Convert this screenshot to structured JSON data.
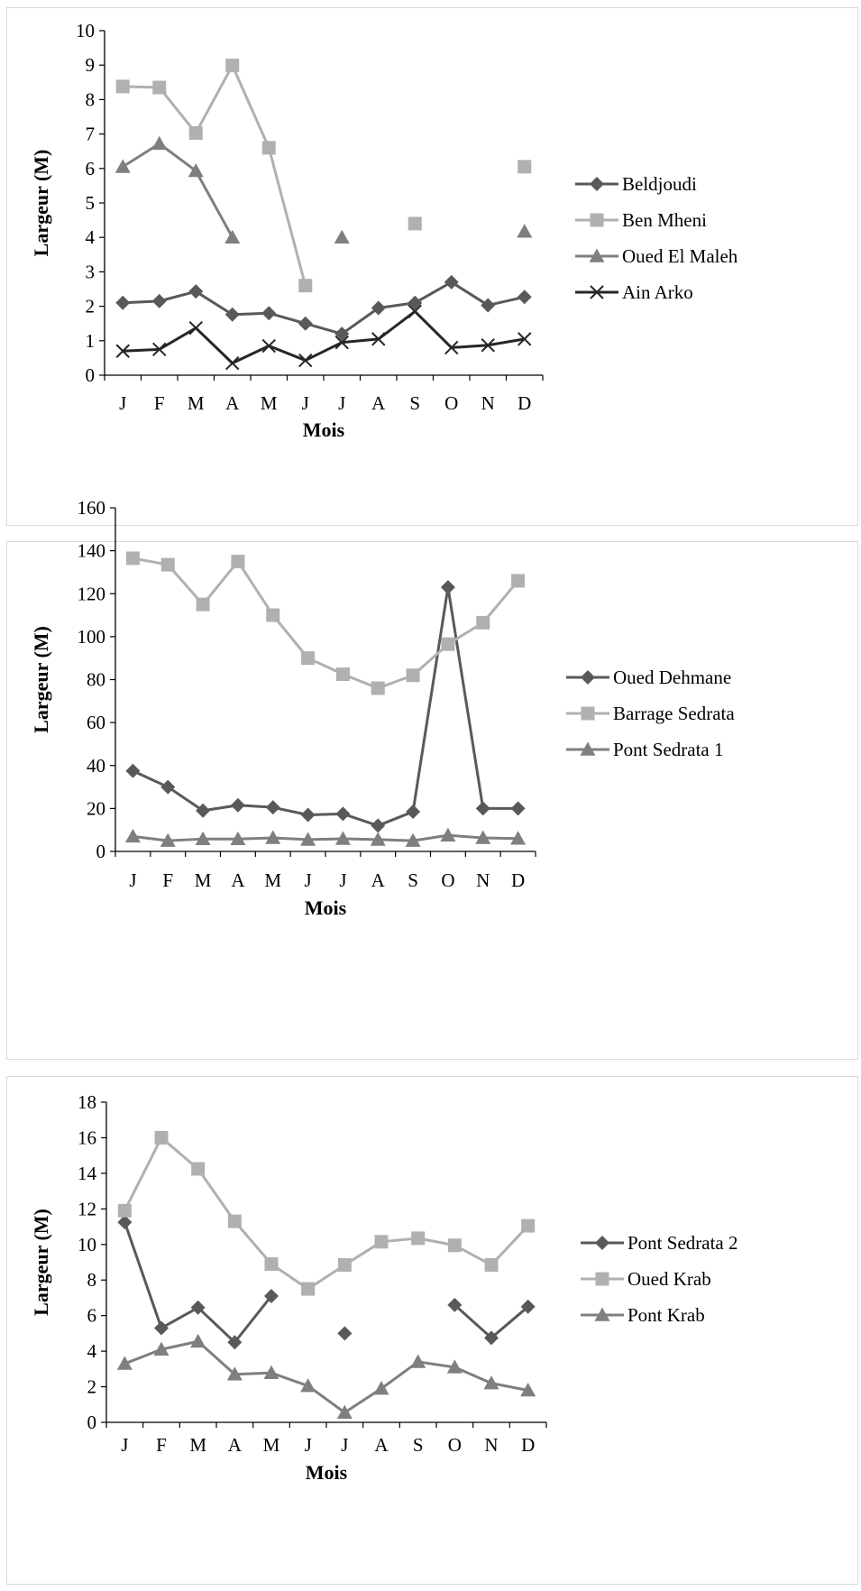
{
  "chart_data": [
    {
      "type": "line",
      "title": "",
      "xlabel": "Mois",
      "ylabel": "Largeur (M)",
      "categories": [
        "J",
        "F",
        "M",
        "A",
        "M",
        "J",
        "J",
        "A",
        "S",
        "O",
        "N",
        "D"
      ],
      "ylim": [
        0,
        10
      ],
      "yticks": [
        0,
        1,
        2,
        3,
        4,
        5,
        6,
        7,
        8,
        9,
        10
      ],
      "legend_position": "right",
      "grid": false,
      "series": [
        {
          "name": "Beldjoudi",
          "marker": "diamond",
          "color": "#595959",
          "values": [
            2.1,
            2.15,
            2.43,
            1.76,
            1.8,
            1.5,
            1.2,
            1.95,
            2.1,
            2.7,
            2.03,
            2.27
          ]
        },
        {
          "name": "Ben Mheni",
          "marker": "square",
          "color": "#b0b0b0",
          "values": [
            8.38,
            8.35,
            7.03,
            8.99,
            6.6,
            2.6,
            null,
            null,
            4.4,
            null,
            null,
            6.05
          ]
        },
        {
          "name": "Oued El Maleh",
          "marker": "triangle",
          "color": "#7f7f7f",
          "values": [
            6.05,
            6.72,
            5.93,
            4.0,
            null,
            null,
            4.0,
            null,
            null,
            null,
            null,
            4.17
          ]
        },
        {
          "name": "Ain Arko",
          "marker": "x",
          "color": "#262626",
          "values": [
            0.7,
            0.75,
            1.37,
            0.35,
            0.85,
            0.43,
            0.95,
            1.05,
            1.85,
            0.8,
            0.87,
            1.05
          ]
        }
      ]
    },
    {
      "type": "line",
      "title": "",
      "xlabel": "Mois",
      "ylabel": "Largeur (M)",
      "categories": [
        "J",
        "F",
        "M",
        "A",
        "M",
        "J",
        "J",
        "A",
        "S",
        "O",
        "N",
        "D"
      ],
      "ylim": [
        0,
        160
      ],
      "yticks": [
        0,
        20,
        40,
        60,
        80,
        100,
        120,
        140,
        160
      ],
      "legend_position": "right",
      "grid": false,
      "series": [
        {
          "name": "Oued Dehmane",
          "marker": "diamond",
          "color": "#595959",
          "values": [
            37.5,
            30.0,
            19.0,
            21.5,
            20.5,
            17.0,
            17.5,
            12.0,
            18.5,
            123.0,
            20.0,
            20.0
          ]
        },
        {
          "name": "Barrage Sedrata",
          "marker": "square",
          "color": "#b0b0b0",
          "values": [
            136.5,
            133.5,
            115.0,
            135.0,
            110.0,
            90.0,
            82.5,
            76.0,
            82.0,
            96.5,
            106.5,
            126.0
          ]
        },
        {
          "name": "Pont Sedrata 1",
          "marker": "triangle",
          "color": "#7f7f7f",
          "values": [
            7.0,
            5.0,
            5.8,
            5.8,
            6.3,
            5.5,
            5.9,
            5.5,
            5.0,
            7.5,
            6.3,
            6.0
          ]
        }
      ]
    },
    {
      "type": "line",
      "title": "",
      "xlabel": "Mois",
      "ylabel": "Largeur (M)",
      "categories": [
        "J",
        "F",
        "M",
        "A",
        "M",
        "J",
        "J",
        "A",
        "S",
        "O",
        "N",
        "D"
      ],
      "ylim": [
        0,
        18
      ],
      "yticks": [
        0,
        2,
        4,
        6,
        8,
        10,
        12,
        14,
        16,
        18
      ],
      "legend_position": "right",
      "grid": false,
      "series": [
        {
          "name": "Pont Sedrata 2",
          "marker": "diamond",
          "color": "#595959",
          "values": [
            11.25,
            5.3,
            6.45,
            4.5,
            7.1,
            null,
            5.0,
            null,
            null,
            6.6,
            4.75,
            6.5
          ]
        },
        {
          "name": "Oued Krab",
          "marker": "square",
          "color": "#b0b0b0",
          "values": [
            11.9,
            16.0,
            14.25,
            11.3,
            8.9,
            7.5,
            8.85,
            10.15,
            10.35,
            9.95,
            8.85,
            11.05
          ]
        },
        {
          "name": "Pont Krab",
          "marker": "triangle",
          "color": "#7f7f7f",
          "values": [
            3.3,
            4.1,
            4.55,
            2.7,
            2.78,
            2.05,
            0.55,
            1.9,
            3.4,
            3.1,
            2.2,
            1.8
          ]
        }
      ]
    }
  ]
}
